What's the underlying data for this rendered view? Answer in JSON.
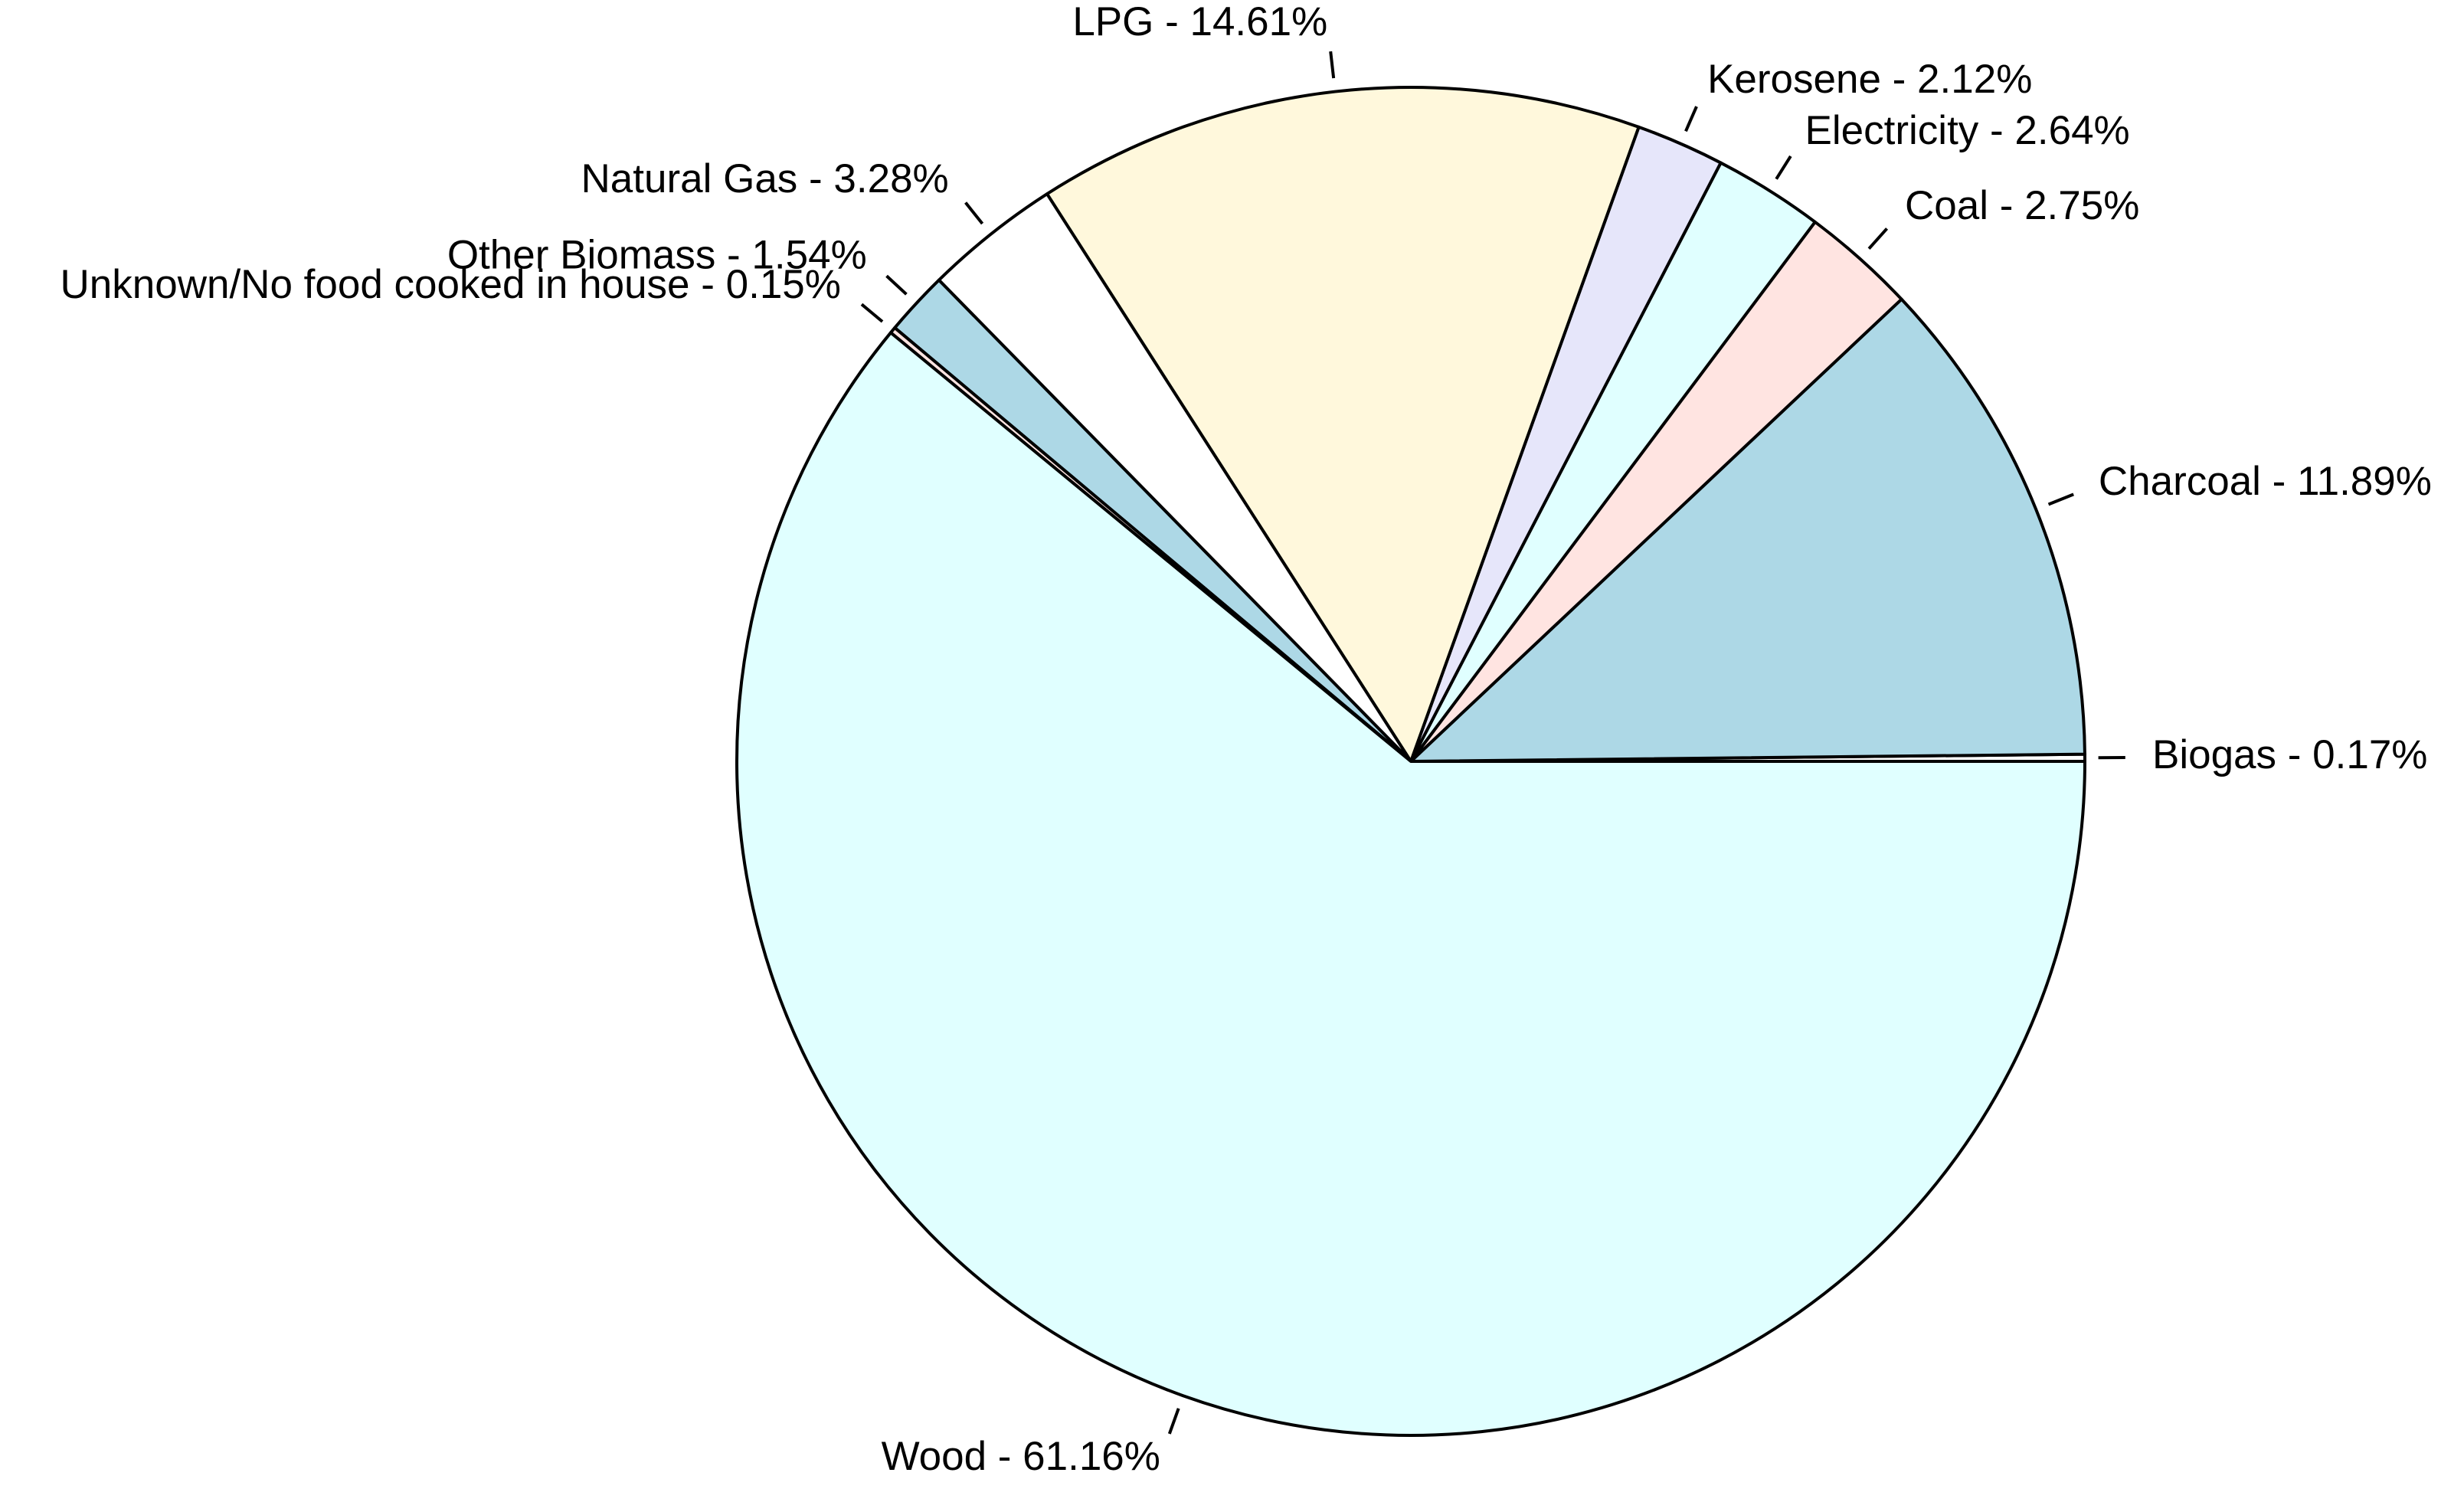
{
  "chart_data": {
    "type": "pie",
    "start": "right",
    "direction": "counterclockwise",
    "slices": [
      {
        "label": "Biogas - 0.17%",
        "value": 0.17,
        "color": "#FFFFFF"
      },
      {
        "label": "Charcoal - 11.89%",
        "value": 11.89,
        "color": "#ADD8E6"
      },
      {
        "label": "Coal - 2.75%",
        "value": 2.75,
        "color": "#FFE4E1"
      },
      {
        "label": "Electricity - 2.64%",
        "value": 2.64,
        "color": "#E0FFFF"
      },
      {
        "label": "Kerosene - 2.12%",
        "value": 2.12,
        "color": "#E6E6FA"
      },
      {
        "label": "LPG - 14.61%",
        "value": 14.61,
        "color": "#FFF8DC"
      },
      {
        "label": "Natural Gas - 3.28%",
        "value": 3.28,
        "color": "#FFFFFF"
      },
      {
        "label": "Other Biomass - 1.54%",
        "value": 1.54,
        "color": "#ADD8E6"
      },
      {
        "label": "Unknown/No food cooked in house - 0.15%",
        "value": 0.15,
        "color": "#FFE4E1"
      },
      {
        "label": "Wood - 61.16%",
        "value": 61.16,
        "color": "#E0FFFF"
      }
    ]
  }
}
